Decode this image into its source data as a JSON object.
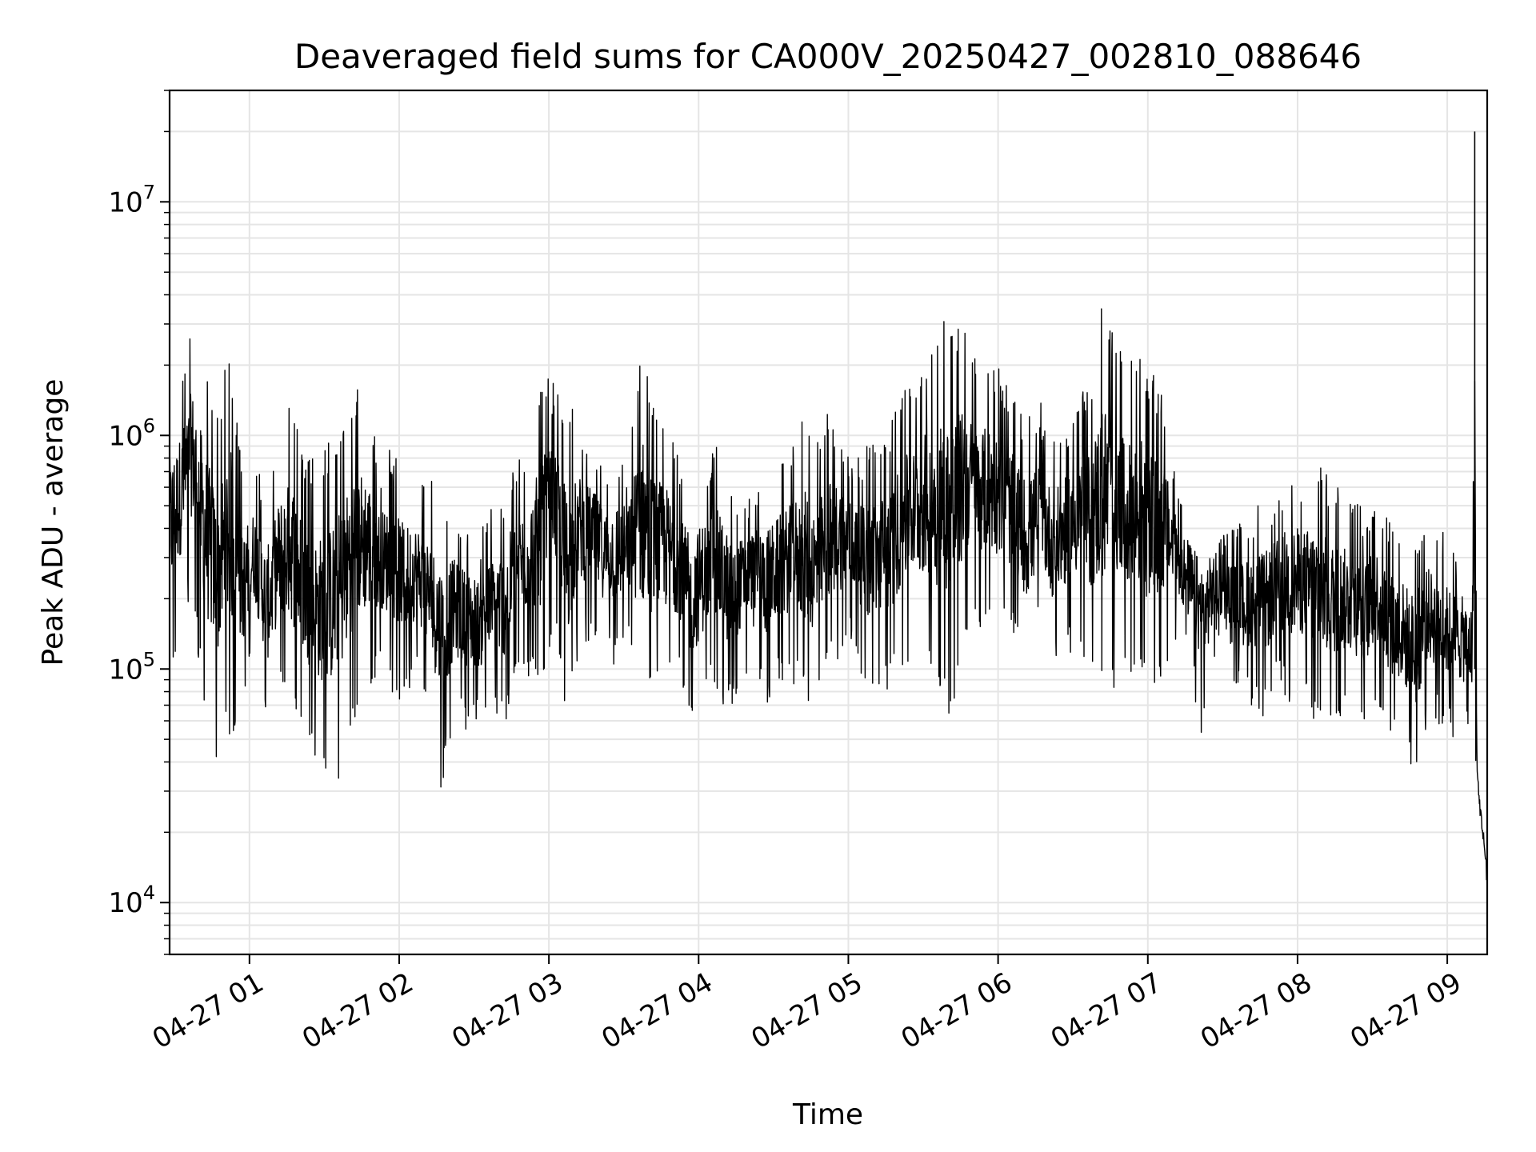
{
  "chart_data": {
    "type": "line",
    "title": "Deaveraged field sums for CA000V_20250427_002810_088646",
    "xlabel": "Time",
    "ylabel": "Peak ADU - average",
    "yscale": "log",
    "ylim": [
      6000,
      30000000
    ],
    "xlim": [
      "04-27 00:28",
      "04-27 09:16"
    ],
    "grid": true,
    "x_ticks": [
      "04-27 01",
      "04-27 02",
      "04-27 03",
      "04-27 04",
      "04-27 05",
      "04-27 06",
      "04-27 07",
      "04-27 08",
      "04-27 09"
    ],
    "y_ticks": [
      {
        "base": "10",
        "exp": "4",
        "value": 10000
      },
      {
        "base": "10",
        "exp": "5",
        "value": 100000
      },
      {
        "base": "10",
        "exp": "6",
        "value": 1000000
      },
      {
        "base": "10",
        "exp": "7",
        "value": 10000000
      }
    ],
    "line_color": "#000000",
    "series": [
      {
        "x": [
          "04-27 00:28",
          "04-27 00:33",
          "04-27 00:37",
          "04-27 00:42",
          "04-27 00:47",
          "04-27 00:52",
          "04-27 00:57",
          "04-27 01:02",
          "04-27 01:07",
          "04-27 01:12",
          "04-27 01:17",
          "04-27 01:22",
          "04-27 01:27",
          "04-27 01:32",
          "04-27 01:37",
          "04-27 01:42",
          "04-27 01:47",
          "04-27 01:52",
          "04-27 01:57",
          "04-27 02:02",
          "04-27 02:07",
          "04-27 02:12",
          "04-27 02:17",
          "04-27 02:22",
          "04-27 02:27",
          "04-27 02:32",
          "04-27 02:37",
          "04-27 02:42",
          "04-27 02:47",
          "04-27 02:52",
          "04-27 02:57",
          "04-27 03:02",
          "04-27 03:07",
          "04-27 03:12",
          "04-27 03:17",
          "04-27 03:22",
          "04-27 03:27",
          "04-27 03:32",
          "04-27 03:37",
          "04-27 03:42",
          "04-27 03:47",
          "04-27 03:52",
          "04-27 03:57",
          "04-27 04:02",
          "04-27 04:07",
          "04-27 04:12",
          "04-27 04:17",
          "04-27 04:22",
          "04-27 04:27",
          "04-27 04:32",
          "04-27 04:37",
          "04-27 04:42",
          "04-27 04:47",
          "04-27 04:52",
          "04-27 04:57",
          "04-27 05:02",
          "04-27 05:07",
          "04-27 05:12",
          "04-27 05:17",
          "04-27 05:22",
          "04-27 05:27",
          "04-27 05:32",
          "04-27 05:37",
          "04-27 05:42",
          "04-27 05:47",
          "04-27 05:52",
          "04-27 05:57",
          "04-27 06:02",
          "04-27 06:07",
          "04-27 06:12",
          "04-27 06:17",
          "04-27 06:22",
          "04-27 06:27",
          "04-27 06:32",
          "04-27 06:37",
          "04-27 06:42",
          "04-27 06:47",
          "04-27 06:52",
          "04-27 06:57",
          "04-27 07:02",
          "04-27 07:07",
          "04-27 07:12",
          "04-27 07:17",
          "04-27 07:22",
          "04-27 07:27",
          "04-27 07:32",
          "04-27 07:37",
          "04-27 07:42",
          "04-27 07:47",
          "04-27 07:52",
          "04-27 07:57",
          "04-27 08:02",
          "04-27 08:07",
          "04-27 08:12",
          "04-27 08:17",
          "04-27 08:22",
          "04-27 08:27",
          "04-27 08:32",
          "04-27 08:37",
          "04-27 08:42",
          "04-27 08:47",
          "04-27 08:52",
          "04-27 08:57",
          "04-27 09:02",
          "04-27 09:07",
          "04-27 09:10",
          "04-27 09:11",
          "04-27 09:12",
          "04-27 09:13",
          "04-27 09:14",
          "04-27 09:15",
          "04-27 09:16"
        ],
        "min": [
          80000,
          150000,
          200000,
          60000,
          40000,
          50000,
          60000,
          110000,
          50000,
          80000,
          60000,
          50000,
          35000,
          30000,
          35000,
          60000,
          70000,
          100000,
          80000,
          70000,
          90000,
          60000,
          30000,
          60000,
          55000,
          55000,
          60000,
          55000,
          80000,
          90000,
          70000,
          150000,
          50000,
          120000,
          130000,
          110000,
          100000,
          120000,
          60000,
          70000,
          80000,
          90000,
          50000,
          70000,
          80000,
          60000,
          80000,
          110000,
          70000,
          80000,
          90000,
          70000,
          60000,
          90000,
          110000,
          130000,
          80000,
          80000,
          80000,
          100000,
          110000,
          90000,
          70000,
          60000,
          130000,
          150000,
          140000,
          140000,
          120000,
          90000,
          150000,
          100000,
          110000,
          120000,
          90000,
          70000,
          80000,
          90000,
          80000,
          70000,
          100000,
          130000,
          90000,
          50000,
          110000,
          110000,
          70000,
          70000,
          60000,
          80000,
          70000,
          70000,
          55000,
          50000,
          60000,
          60000,
          55000,
          70000,
          50000,
          45000,
          30000,
          60000,
          55000,
          50000,
          50000,
          45000,
          35000,
          30000,
          22000,
          18000,
          14000,
          9000
        ],
        "max": [
          1700000,
          2000000,
          3200000,
          2200000,
          1300000,
          2600000,
          700000,
          800000,
          600000,
          1000000,
          1500000,
          800000,
          800000,
          950000,
          1200000,
          1700000,
          1500000,
          800000,
          900000,
          750000,
          700000,
          650000,
          600000,
          500000,
          450000,
          400000,
          500000,
          600000,
          800000,
          900000,
          1800000,
          1700000,
          1400000,
          1200000,
          1000000,
          800000,
          900000,
          800000,
          2700000,
          1400000,
          1200000,
          800000,
          700000,
          800000,
          900000,
          700000,
          600000,
          600000,
          700000,
          800000,
          900000,
          1200000,
          1000000,
          1300000,
          1100000,
          800000,
          900000,
          1000000,
          1200000,
          1600000,
          1800000,
          2500000,
          3000000,
          3300000,
          2800000,
          2000000,
          2200000,
          1800000,
          1500000,
          1200000,
          1400000,
          1000000,
          1200000,
          1500000,
          1800000,
          4000000,
          2500000,
          2000000,
          2300000,
          1900000,
          1400000,
          600000,
          550000,
          500000,
          450000,
          400000,
          450000,
          500000,
          550000,
          600000,
          750000,
          700000,
          800000,
          700000,
          600000,
          550000,
          500000,
          550000,
          450000,
          420000,
          400000,
          450000,
          400000,
          350000,
          320000,
          300000,
          20000000,
          40000,
          30000,
          25000,
          20000,
          17000
        ]
      }
    ]
  }
}
